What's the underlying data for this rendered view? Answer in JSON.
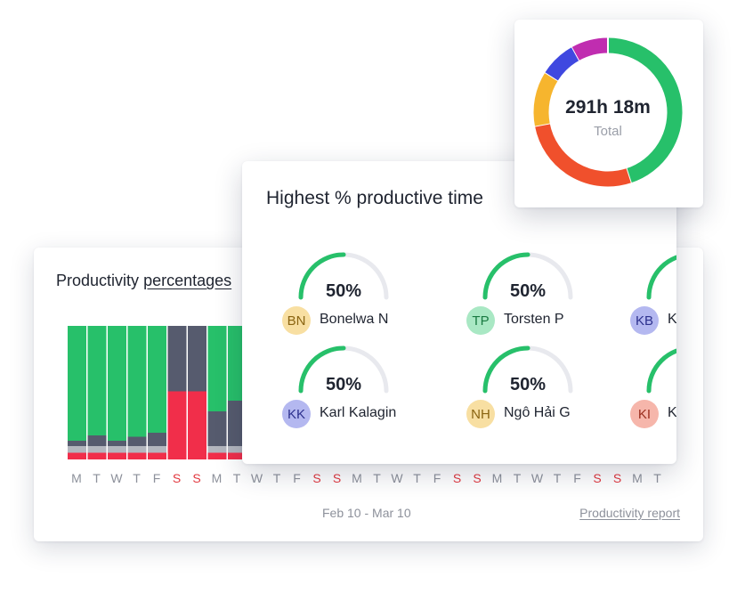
{
  "productivity": {
    "title_prefix": "Productivity",
    "title_link": "percentages",
    "days": [
      "M",
      "T",
      "W",
      "T",
      "F",
      "S",
      "S",
      "M",
      "T",
      "W",
      "T",
      "F",
      "S",
      "S",
      "M",
      "T",
      "W",
      "T",
      "F",
      "S",
      "S",
      "M",
      "T",
      "W",
      "T",
      "F",
      "S",
      "S",
      "M",
      "T"
    ],
    "weekend_color": "#e2383f",
    "date_range": "Feb 10 - Mar 10",
    "report_link": "Productivity report",
    "colors": {
      "productive": "#27c06a",
      "neutral": "#565b6e",
      "gray": "#b3b6be",
      "unproductive": "#f12e4a"
    },
    "visible_bars": [
      {
        "productive": 0.86,
        "neutral": 0.04,
        "gray": 0.05,
        "unproductive": 0.05
      },
      {
        "productive": 0.82,
        "neutral": 0.08,
        "gray": 0.05,
        "unproductive": 0.05
      },
      {
        "productive": 0.86,
        "neutral": 0.04,
        "gray": 0.05,
        "unproductive": 0.05
      },
      {
        "productive": 0.83,
        "neutral": 0.07,
        "gray": 0.05,
        "unproductive": 0.05
      },
      {
        "productive": 0.8,
        "neutral": 0.1,
        "gray": 0.05,
        "unproductive": 0.05
      },
      {
        "productive": 0.0,
        "neutral": 0.49,
        "gray": 0.0,
        "unproductive": 0.51
      },
      {
        "productive": 0.0,
        "neutral": 0.49,
        "gray": 0.0,
        "unproductive": 0.51
      },
      {
        "productive": 0.64,
        "neutral": 0.26,
        "gray": 0.05,
        "unproductive": 0.05
      },
      {
        "productive": 0.56,
        "neutral": 0.34,
        "gray": 0.05,
        "unproductive": 0.05
      }
    ]
  },
  "highest": {
    "title": "Highest % productive time",
    "gauge_colors": {
      "filled": "#27c06a",
      "track": "#e8e9ee"
    },
    "people": [
      {
        "initials": "BN",
        "name": "Bonelwa N",
        "pct": "50%",
        "value": 0.5,
        "avatar_bg": "#f8dfa2",
        "avatar_fg": "#8a6411"
      },
      {
        "initials": "TP",
        "name": "Torsten P",
        "pct": "50%",
        "value": 0.5,
        "avatar_bg": "#a9e8c4",
        "avatar_fg": "#197a42"
      },
      {
        "initials": "KB",
        "name": "K",
        "pct": "",
        "value": 0.5,
        "avatar_bg": "#b4b8f0",
        "avatar_fg": "#2d318e"
      },
      {
        "initials": "KK",
        "name": "Karl Kalagin",
        "pct": "50%",
        "value": 0.5,
        "avatar_bg": "#b4b8f0",
        "avatar_fg": "#2d318e"
      },
      {
        "initials": "NH",
        "name": "Ngô Hải G",
        "pct": "50%",
        "value": 0.5,
        "avatar_bg": "#f8dfa2",
        "avatar_fg": "#8a6411"
      },
      {
        "initials": "KI",
        "name": "K",
        "pct": "",
        "value": 0.5,
        "avatar_bg": "#f6b6ab",
        "avatar_fg": "#9a2e1e"
      }
    ]
  },
  "donut": {
    "total": "291h 18m",
    "label": "Total",
    "segments": [
      {
        "color": "#27c06a",
        "value": 0.45
      },
      {
        "color": "#f0502c",
        "value": 0.27
      },
      {
        "color": "#f6b52e",
        "value": 0.12
      },
      {
        "color": "#3f48e0",
        "value": 0.08
      },
      {
        "color": "#c02db0",
        "value": 0.08
      }
    ]
  }
}
